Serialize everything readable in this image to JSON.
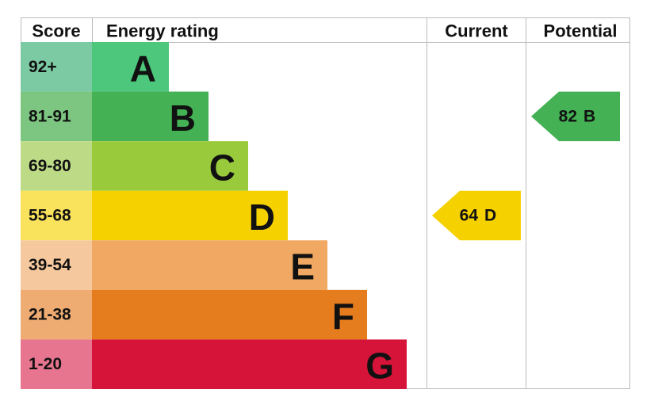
{
  "header": {
    "score": "Score",
    "rating": "Energy rating",
    "current": "Current",
    "potential": "Potential"
  },
  "bands": [
    {
      "score": "92+",
      "letter": "A",
      "color": "#4cc77b",
      "score_color": "#7ccaa3"
    },
    {
      "score": "81-91",
      "letter": "B",
      "color": "#43b154",
      "score_color": "#7dc681"
    },
    {
      "score": "69-80",
      "letter": "C",
      "color": "#99ca3c",
      "score_color": "#bddb86"
    },
    {
      "score": "55-68",
      "letter": "D",
      "color": "#f6d100",
      "score_color": "#f9e25c"
    },
    {
      "score": "39-54",
      "letter": "E",
      "color": "#f0a862",
      "score_color": "#f6c89d"
    },
    {
      "score": "21-38",
      "letter": "F",
      "color": "#e57c1e",
      "score_color": "#eeab72"
    },
    {
      "score": "1-20",
      "letter": "G",
      "color": "#d61439",
      "score_color": "#e8758f"
    }
  ],
  "current": {
    "score": 64,
    "letter": "D"
  },
  "potential": {
    "score": 82,
    "letter": "B"
  }
}
